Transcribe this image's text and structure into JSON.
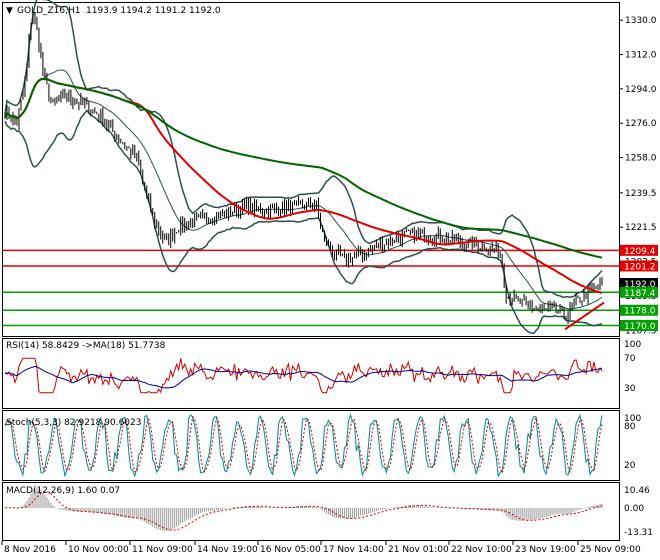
{
  "main": {
    "symbol_text": "GOLD_Z16,H1",
    "ohlc_text": "1193.9 1194.2 1191.2 1192.0",
    "y_ticks": [
      "1330.0",
      "1312.0",
      "1294.0",
      "1276.0",
      "1258.0",
      "1239.5",
      "1221.5",
      "1203.5",
      "1185.5",
      "1167.5"
    ],
    "y_ticks_values": [
      1330.0,
      1312.0,
      1294.0,
      1276.0,
      1258.0,
      1239.5,
      1221.5,
      1203.5,
      1185.5,
      1167.5
    ],
    "y_range": [
      1164.5,
      1339.0
    ],
    "levels": [
      {
        "label": "1209.4",
        "value": 1209.4,
        "color": "#e00000"
      },
      {
        "label": "1201.2",
        "value": 1201.2,
        "color": "#e00000"
      },
      {
        "label": "1192.0",
        "value": 1192.0,
        "color": "#000000"
      },
      {
        "label": "1187.4",
        "value": 1187.4,
        "color": "#00a000"
      },
      {
        "label": "1178.0",
        "value": 1178.0,
        "color": "#00a000"
      },
      {
        "label": "1170.0",
        "value": 1170.0,
        "color": "#00a000"
      }
    ]
  },
  "rsi": {
    "label": "RSI(14) 58.8429 ->MA(18) 51.7738",
    "y_ticks": [
      "70",
      "30"
    ],
    "y_ticks_values": [
      70,
      30
    ],
    "top_tick": "100"
  },
  "stoch": {
    "label": "Stoch(5,3,3) 82.9218 90.6023",
    "y_ticks": [
      "80",
      "20"
    ],
    "top_tick": "100"
  },
  "macd": {
    "label": "MACD(12,26,9) 1.60 0.07",
    "y_ticks": [
      "10.46",
      "0.00",
      "-13.31"
    ]
  },
  "x_axis": [
    "8 Nov 2016",
    "10 Nov 00:00",
    "11 Nov 09:00",
    "14 Nov 19:00",
    "16 Nov 05:00",
    "17 Nov 14:00",
    "21 Nov 01:00",
    "22 Nov 10:00",
    "23 Nov 19:00",
    "25 Nov 09:00"
  ],
  "chart_data": {
    "type": "line",
    "title": "GOLD_Z16,H1",
    "x": [
      "8 Nov 2016",
      "10 Nov 00:00",
      "11 Nov 09:00",
      "14 Nov 19:00",
      "16 Nov 05:00",
      "17 Nov 14:00",
      "21 Nov 01:00",
      "22 Nov 10:00",
      "23 Nov 19:00",
      "25 Nov 09:00"
    ],
    "series": [
      {
        "name": "price",
        "values": [
          1280,
          1285,
          1215,
          1228,
          1233,
          1220,
          1214,
          1210,
          1180,
          1192
        ]
      },
      {
        "name": "ma_red",
        "values": [
          1290,
          1283,
          1255,
          1243,
          1237,
          1230,
          1220,
          1214,
          1200,
          1198
        ]
      },
      {
        "name": "ma_green",
        "values": [
          1285,
          1285,
          1270,
          1257,
          1252,
          1245,
          1237,
          1232,
          1218,
          1208
        ]
      }
    ],
    "ylim": [
      1164.5,
      1339.0
    ]
  },
  "colors": {
    "price": "#000000",
    "band": "#2f4f4f",
    "ma_red": "#e00000",
    "ma_green": "#006400",
    "level_red": "#e00000",
    "level_green": "#00a000",
    "rsi": "#cc0000",
    "rsi_ma": "#000080",
    "stoch_main": "#008b8b",
    "stoch_signal": "#cc0000",
    "macd_hist": "#9a9a9a",
    "macd_signal": "#cc0000"
  }
}
